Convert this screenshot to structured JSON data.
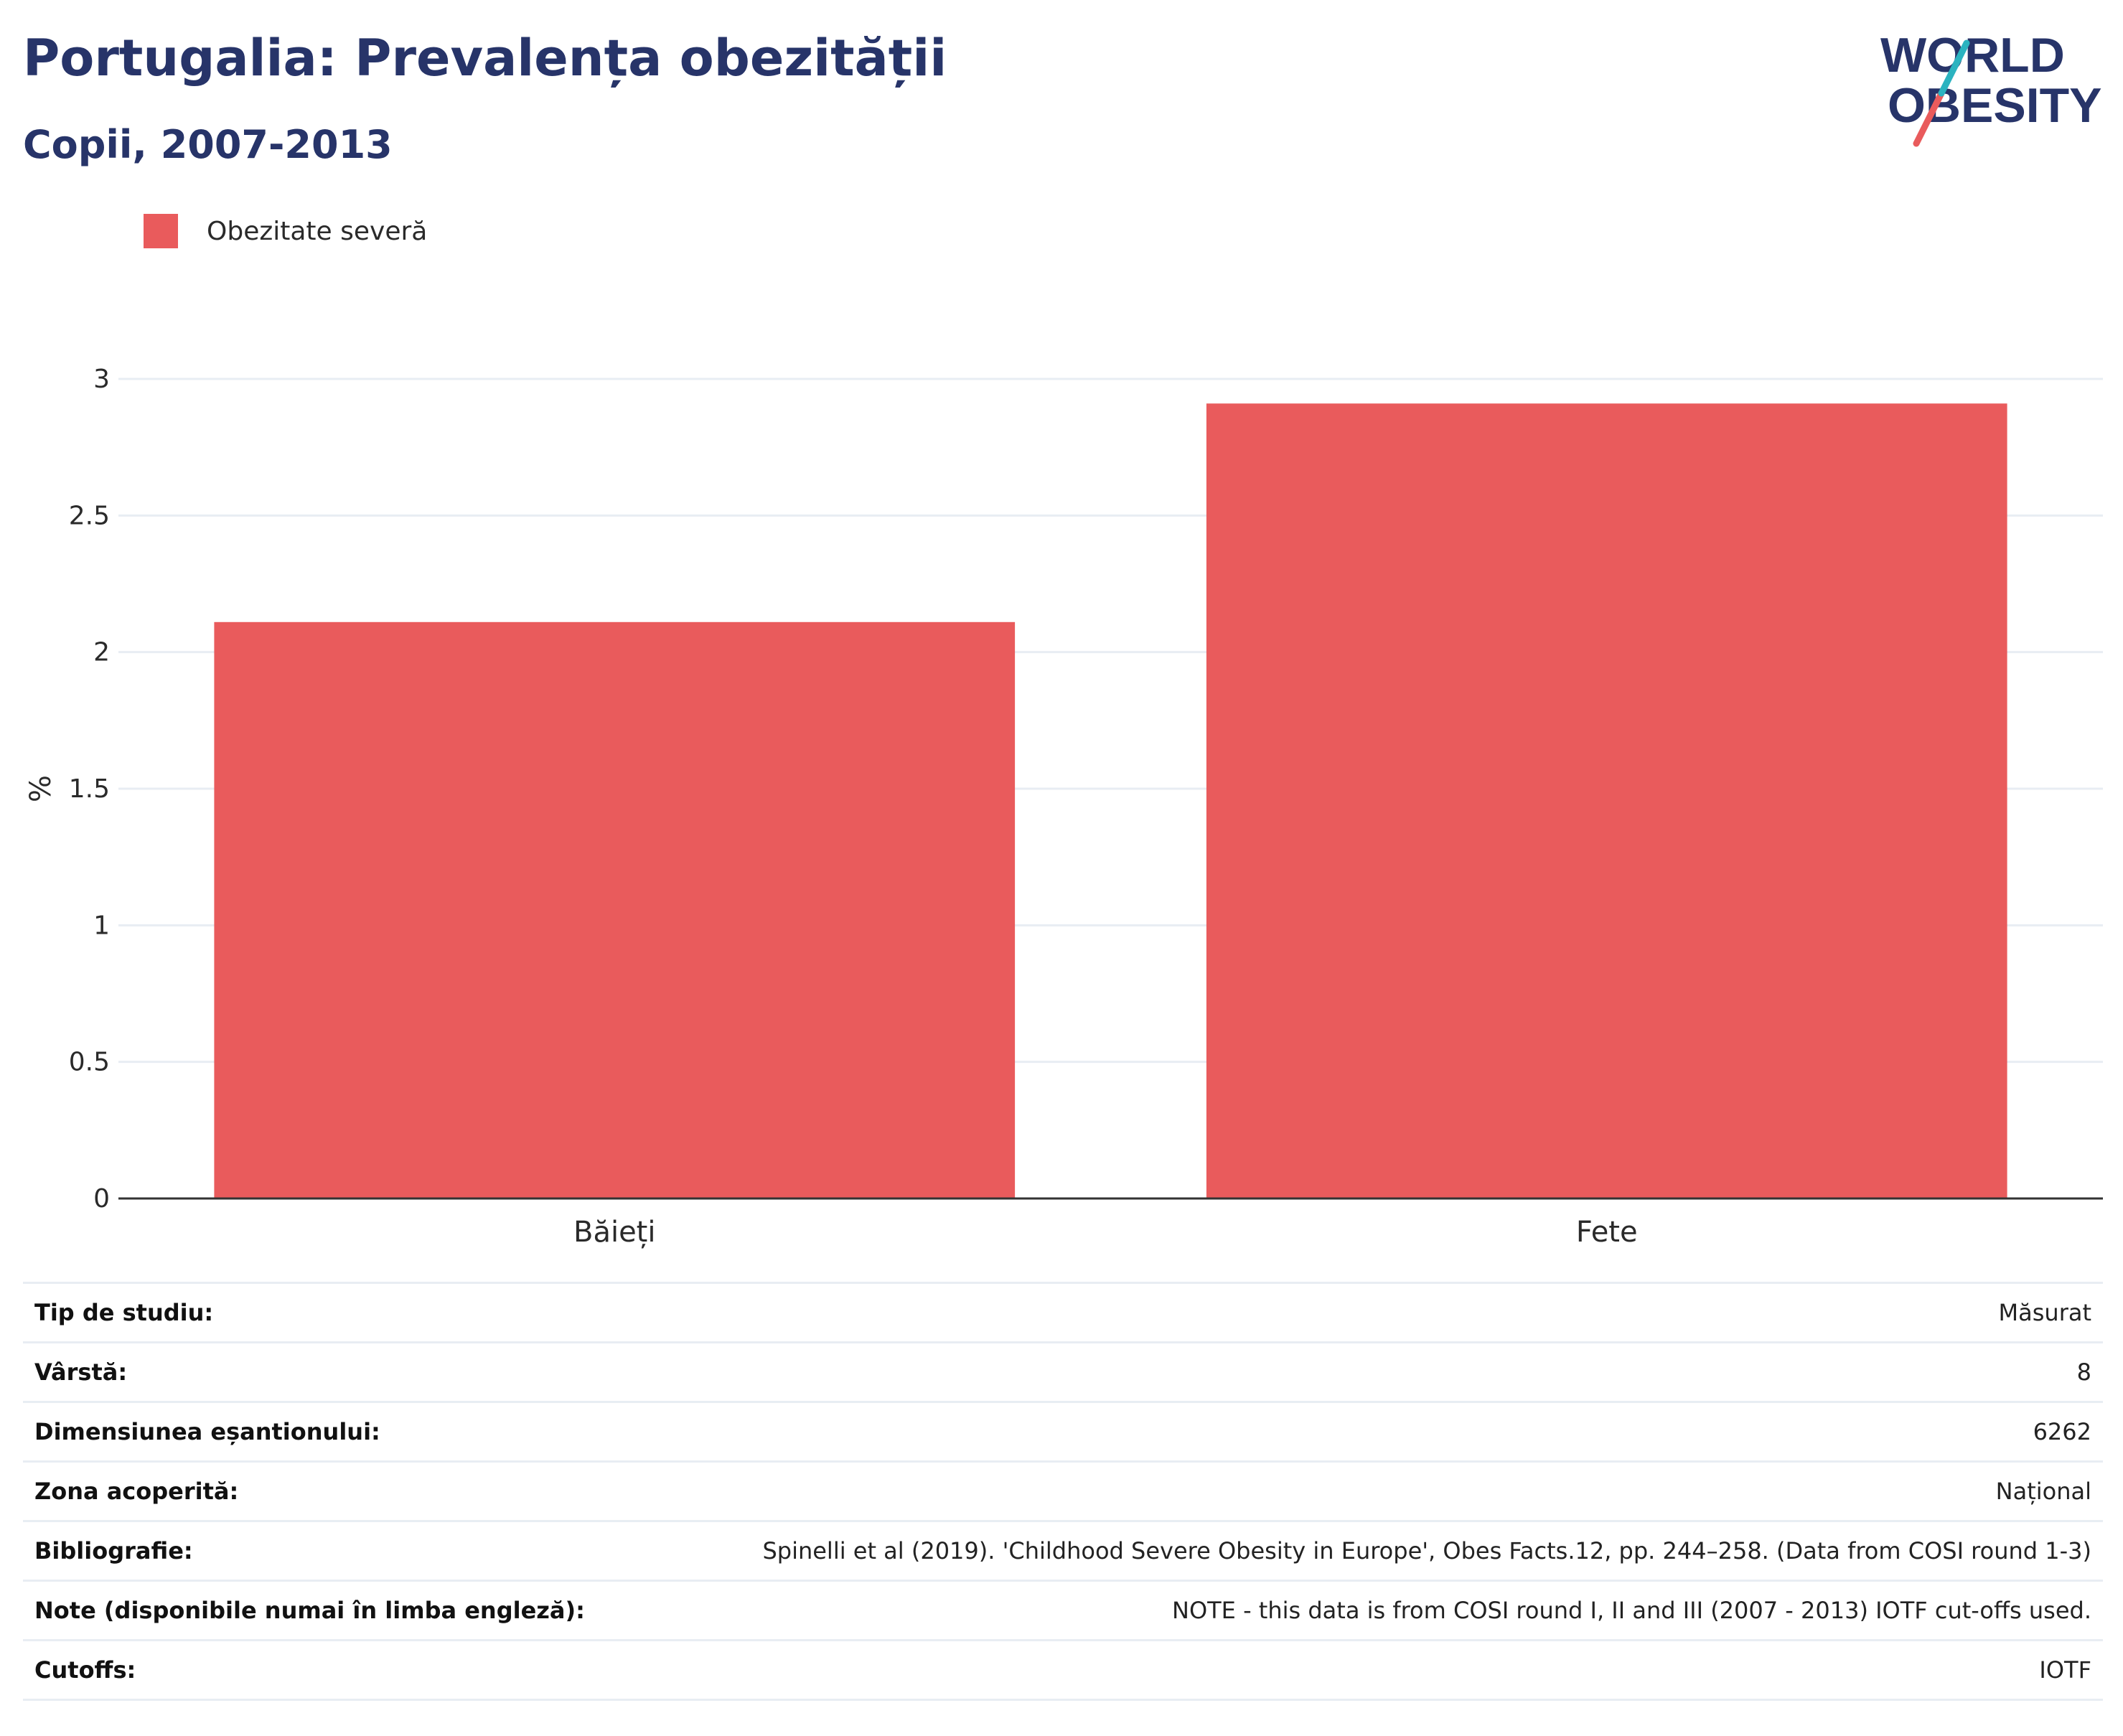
{
  "header": {
    "title": "Portugalia: Prevalența obezității",
    "subtitle": "Copii, 2007-2013"
  },
  "logo": {
    "line1": "WORLD",
    "line2": "OBESITY"
  },
  "colors": {
    "bar": "#e95b5c",
    "title": "#273469",
    "grid": "#e8edf3",
    "axis": "#333333"
  },
  "chart_data": {
    "type": "bar",
    "categories": [
      "Băieți",
      "Fete"
    ],
    "series": [
      {
        "name": "Obezitate severă",
        "values": [
          2.11,
          2.91
        ]
      }
    ],
    "ylabel": "%",
    "ylim": [
      0,
      3
    ],
    "yticks": [
      "0",
      "0.5",
      "1",
      "1.5",
      "2",
      "2.5",
      "3"
    ],
    "grid": true,
    "legend_position": "top-left"
  },
  "info": [
    {
      "label": "Tip de studiu:",
      "value": "Măsurat"
    },
    {
      "label": "Vârstă:",
      "value": "8"
    },
    {
      "label": "Dimensiunea eșantionului:",
      "value": "6262"
    },
    {
      "label": "Zona acoperită:",
      "value": "Național"
    },
    {
      "label": "Bibliografie:",
      "value": "Spinelli et al (2019). 'Childhood Severe Obesity in Europe', Obes Facts.12, pp. 244–258. (Data from COSI round 1-3)"
    },
    {
      "label": "Note (disponibile numai în limba engleză):",
      "value": "NOTE - this data is from COSI round I, II and III (2007 - 2013) IOTF cut-offs used."
    },
    {
      "label": "Cutoffs:",
      "value": "IOTF"
    }
  ]
}
